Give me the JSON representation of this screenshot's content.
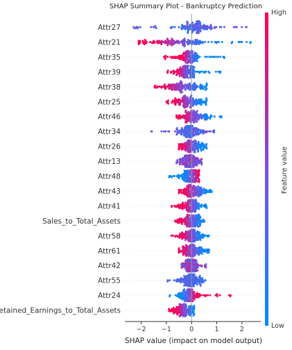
{
  "chart_data": {
    "type": "scatter",
    "title": "SHAP Summary Plot - Bankruptcy Prediction",
    "xlabel": "SHAP value (impact on model output)",
    "xlim": [
      -2.65,
      2.75
    ],
    "x_ticks": [
      -2,
      -1,
      0,
      1,
      2
    ],
    "features": [
      {
        "name": "Attr27",
        "min": -2.3,
        "max": 2.2,
        "core_lo": -0.4,
        "core_hi": 0.7,
        "color": "mixed_blue"
      },
      {
        "name": "Attr21",
        "min": -2.1,
        "max": 2.4,
        "core_lo": -1.6,
        "core_hi": 0.6,
        "color": "lowpos"
      },
      {
        "name": "Attr35",
        "min": -1.1,
        "max": 1.3,
        "core_lo": -0.4,
        "core_hi": 0.2,
        "color": "lowpos"
      },
      {
        "name": "Attr39",
        "min": -1.0,
        "max": 1.2,
        "core_lo": -0.6,
        "core_hi": 0.2,
        "color": "highneg"
      },
      {
        "name": "Attr38",
        "min": -1.5,
        "max": 0.6,
        "core_lo": -1.1,
        "core_hi": 0.5,
        "color": "highneg"
      },
      {
        "name": "Attr25",
        "min": -1.0,
        "max": 0.6,
        "core_lo": -0.6,
        "core_hi": 0.4,
        "color": "highneg"
      },
      {
        "name": "Attr46",
        "min": -0.6,
        "max": 1.2,
        "core_lo": -0.4,
        "core_hi": 0.6,
        "color": "lowpos"
      },
      {
        "name": "Attr34",
        "min": -1.6,
        "max": 0.9,
        "core_lo": -0.5,
        "core_hi": 0.4,
        "color": "mixed_blue"
      },
      {
        "name": "Attr26",
        "min": -0.5,
        "max": 0.6,
        "core_lo": -0.4,
        "core_hi": 0.4,
        "color": "highneg"
      },
      {
        "name": "Attr13",
        "min": -0.6,
        "max": 0.4,
        "core_lo": -0.4,
        "core_hi": 0.3,
        "color": "mixed"
      },
      {
        "name": "Attr48",
        "min": -0.9,
        "max": 0.3,
        "core_lo": -0.3,
        "core_hi": 0.3,
        "color": "highpos"
      },
      {
        "name": "Attr43",
        "min": -0.5,
        "max": 0.8,
        "core_lo": -0.3,
        "core_hi": 0.5,
        "color": "lowpos"
      },
      {
        "name": "Attr41",
        "min": -0.8,
        "max": 0.6,
        "core_lo": -0.3,
        "core_hi": 0.3,
        "color": "lowpos"
      },
      {
        "name": "Sales_to_Total_Assets",
        "min": -0.7,
        "max": 0.5,
        "core_lo": -0.4,
        "core_hi": 0.4,
        "color": "highneg"
      },
      {
        "name": "Attr58",
        "min": -0.8,
        "max": 0.7,
        "core_lo": -0.4,
        "core_hi": 0.4,
        "color": "highneg"
      },
      {
        "name": "Attr61",
        "min": -0.5,
        "max": 0.7,
        "core_lo": -0.4,
        "core_hi": 0.4,
        "color": "lowpos"
      },
      {
        "name": "Attr42",
        "min": -0.4,
        "max": 0.6,
        "core_lo": -0.3,
        "core_hi": 0.2,
        "color": "mixed"
      },
      {
        "name": "Attr55",
        "min": -1.0,
        "max": 0.6,
        "core_lo": -0.4,
        "core_hi": 0.4,
        "color": "mixed_blue"
      },
      {
        "name": "Attr24",
        "min": -0.9,
        "max": 1.6,
        "core_lo": -0.4,
        "core_hi": 0.2,
        "color": "highpos"
      },
      {
        "name": "Retained_Earnings_to_Total_Assets",
        "min": -0.9,
        "max": 0.1,
        "core_lo": -0.6,
        "core_hi": 0.05,
        "color": "highneg"
      }
    ],
    "colorbar": {
      "label": "Feature value",
      "high_label": "High",
      "low_label": "Low",
      "high_color": "#ff0052",
      "low_color": "#008bfb"
    },
    "grid": false
  }
}
